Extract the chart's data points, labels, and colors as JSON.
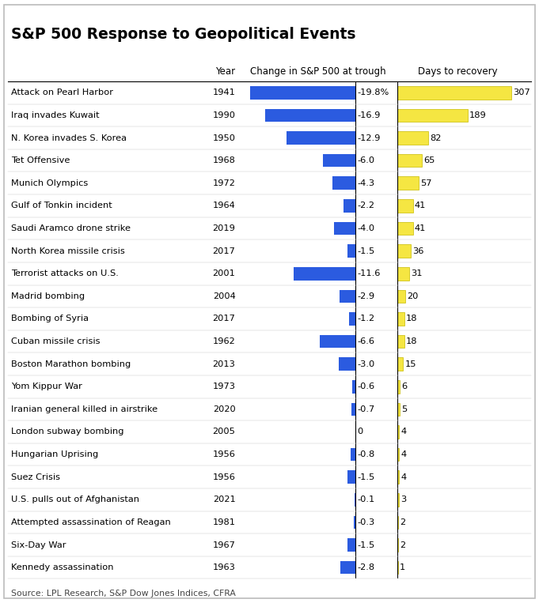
{
  "title": "S&P 500 Response to Geopolitical Events",
  "col_year": "Year",
  "col_change": "Change in S&P 500 at trough",
  "col_days": "Days to recovery",
  "source": "Source: LPL Research, S&P Dow Jones Indices, CFRA",
  "events": [
    {
      "name": "Attack on Pearl Harbor",
      "year": 1941,
      "change": -19.8,
      "days": 307,
      "label": "-19.8%"
    },
    {
      "name": "Iraq invades Kuwait",
      "year": 1990,
      "change": -16.9,
      "days": 189,
      "label": "-16.9"
    },
    {
      "name": "N. Korea invades S. Korea",
      "year": 1950,
      "change": -12.9,
      "days": 82,
      "label": "-12.9"
    },
    {
      "name": "Tet Offensive",
      "year": 1968,
      "change": -6.0,
      "days": 65,
      "label": "-6.0"
    },
    {
      "name": "Munich Olympics",
      "year": 1972,
      "change": -4.3,
      "days": 57,
      "label": "-4.3"
    },
    {
      "name": "Gulf of Tonkin incident",
      "year": 1964,
      "change": -2.2,
      "days": 41,
      "label": "-2.2"
    },
    {
      "name": "Saudi Aramco drone strike",
      "year": 2019,
      "change": -4.0,
      "days": 41,
      "label": "-4.0"
    },
    {
      "name": "North Korea missile crisis",
      "year": 2017,
      "change": -1.5,
      "days": 36,
      "label": "-1.5"
    },
    {
      "name": "Terrorist attacks on U.S.",
      "year": 2001,
      "change": -11.6,
      "days": 31,
      "label": "-11.6"
    },
    {
      "name": "Madrid bombing",
      "year": 2004,
      "change": -2.9,
      "days": 20,
      "label": "-2.9"
    },
    {
      "name": "Bombing of Syria",
      "year": 2017,
      "change": -1.2,
      "days": 18,
      "label": "-1.2"
    },
    {
      "name": "Cuban missile crisis",
      "year": 1962,
      "change": -6.6,
      "days": 18,
      "label": "-6.6"
    },
    {
      "name": "Boston Marathon bombing",
      "year": 2013,
      "change": -3.0,
      "days": 15,
      "label": "-3.0"
    },
    {
      "name": "Yom Kippur War",
      "year": 1973,
      "change": -0.6,
      "days": 6,
      "label": "-0.6"
    },
    {
      "name": "Iranian general killed in airstrike",
      "year": 2020,
      "change": -0.7,
      "days": 5,
      "label": "-0.7"
    },
    {
      "name": "London subway bombing",
      "year": 2005,
      "change": 0.0,
      "days": 4,
      "label": "0"
    },
    {
      "name": "Hungarian Uprising",
      "year": 1956,
      "change": -0.8,
      "days": 4,
      "label": "-0.8"
    },
    {
      "name": "Suez Crisis",
      "year": 1956,
      "change": -1.5,
      "days": 4,
      "label": "-1.5"
    },
    {
      "name": "U.S. pulls out of Afghanistan",
      "year": 2021,
      "change": -0.1,
      "days": 3,
      "label": "-0.1"
    },
    {
      "name": "Attempted assassination of Reagan",
      "year": 1981,
      "change": -0.3,
      "days": 2,
      "label": "-0.3"
    },
    {
      "name": "Six-Day War",
      "year": 1967,
      "change": -1.5,
      "days": 2,
      "label": "-1.5"
    },
    {
      "name": "Kennedy assassination",
      "year": 1963,
      "change": -2.8,
      "days": 1,
      "label": "-2.8"
    }
  ],
  "blue_color": "#2B5BE0",
  "yellow_color": "#F5E642",
  "yellow_edge": "#C8BB00",
  "bg_color": "#FFFFFF",
  "text_color": "#000000",
  "grid_color": "#CCCCCC",
  "border_color": "#BBBBBB",
  "title_fontsize": 13.5,
  "label_fontsize": 8.2,
  "header_fontsize": 8.5,
  "source_fontsize": 7.8,
  "blue_xlim_min": -22,
  "blue_xlim_max": 8,
  "days_xlim_max": 360
}
